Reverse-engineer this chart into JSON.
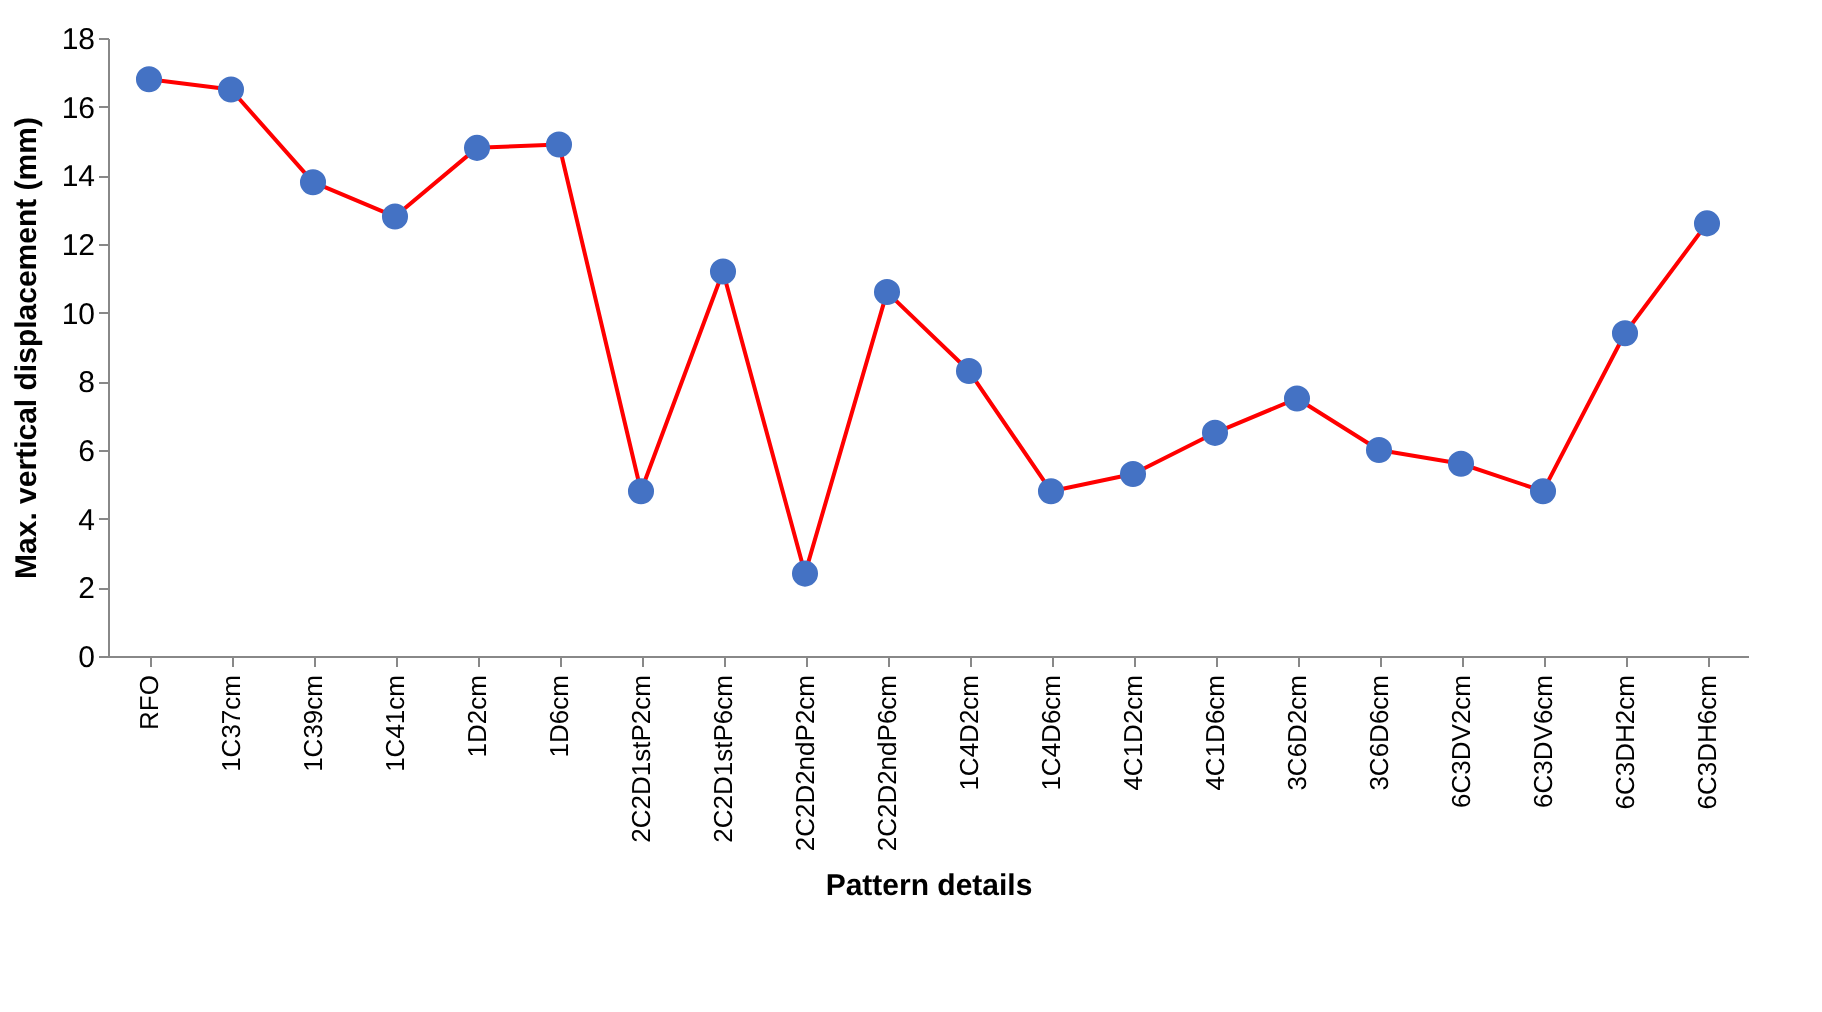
{
  "chart_data": {
    "type": "line",
    "xlabel": "Pattern details",
    "ylabel": "Max. vertical displacement (mm)",
    "categories": [
      "RFO",
      "1C37cm",
      "1C39cm",
      "1C41cm",
      "1D2cm",
      "1D6cm",
      "2C2D1stP2cm",
      "2C2D1stP6cm",
      "2C2D2ndP2cm",
      "2C2D2ndP6cm",
      "1C4D2cm",
      "1C4D6cm",
      "4C1D2cm",
      "4C1D6cm",
      "3C6D2cm",
      "3C6D6cm",
      "6C3DV2cm",
      "6C3DV6cm",
      "6C3DH2cm",
      "6C3DH6cm"
    ],
    "series": [
      {
        "color": "#ff0000",
        "colors": [
          "#4472c4",
          "#4472c4",
          "#4472c4",
          "#4472c4",
          "#4472c4",
          "#4472c4",
          "#4472c4",
          "#4472c4",
          "#4472c4",
          "#4472c4",
          "#4472c4",
          "#4472c4",
          "#4472c4",
          "#4472c4",
          "#4472c4",
          "#4472c4",
          "#4472c4",
          "#4472c4",
          "#4472c4",
          "#4472c4"
        ],
        "values": [
          16.8,
          16.5,
          13.8,
          12.8,
          14.8,
          14.9,
          4.8,
          11.2,
          2.4,
          10.6,
          8.3,
          4.8,
          5.3,
          6.5,
          7.5,
          6.0,
          5.6,
          4.8,
          9.4,
          12.6
        ]
      }
    ],
    "ylim": [
      0,
      18
    ],
    "yticks": [
      0,
      2,
      4,
      6,
      8,
      10,
      12,
      14,
      16,
      18
    ],
    "marker": "circle",
    "line_style": "solid"
  }
}
